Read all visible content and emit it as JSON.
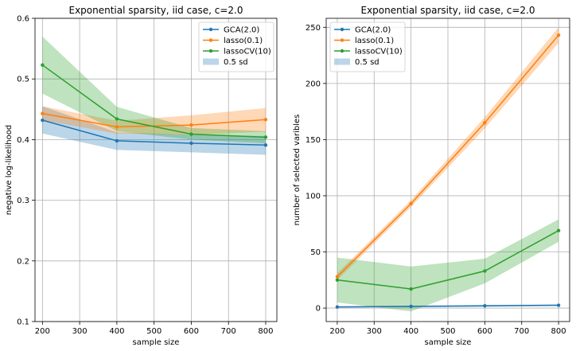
{
  "chart_data": [
    {
      "type": "line",
      "title": "Exponential sparsity, iid case, c=2.0",
      "xlabel": "sample size",
      "ylabel": "negative log-likelihood",
      "xlim": [
        180,
        830
      ],
      "ylim": [
        0.1,
        0.6
      ],
      "x_ticks": [
        200,
        300,
        400,
        500,
        600,
        700,
        800
      ],
      "y_ticks": [
        0.1,
        0.2,
        0.3,
        0.4,
        0.5,
        0.6
      ],
      "grid": true,
      "legend_position": "top-right",
      "x": [
        200,
        400,
        600,
        800
      ],
      "series": [
        {
          "name": "GCA(2.0)",
          "color": "#1f77b4",
          "values": [
            0.432,
            0.398,
            0.394,
            0.391
          ],
          "band_low": [
            0.41,
            0.383,
            0.379,
            0.375
          ],
          "band_high": [
            0.455,
            0.412,
            0.408,
            0.406
          ]
        },
        {
          "name": "lasso(0.1)",
          "color": "#ff7f0e",
          "values": [
            0.443,
            0.421,
            0.424,
            0.433
          ],
          "band_low": [
            0.432,
            0.41,
            0.408,
            0.413
          ],
          "band_high": [
            0.455,
            0.431,
            0.44,
            0.452
          ]
        },
        {
          "name": "lassoCV(10)",
          "color": "#2ca02c",
          "values": [
            0.523,
            0.434,
            0.409,
            0.404
          ],
          "band_low": [
            0.476,
            0.414,
            0.4,
            0.394
          ],
          "band_high": [
            0.57,
            0.454,
            0.419,
            0.414
          ]
        }
      ],
      "band_legend": "0.5 sd"
    },
    {
      "type": "line",
      "title": "Exponential sparsity, iid case, c=2.0",
      "xlabel": "sample size",
      "ylabel": "number of selected varibles",
      "xlim": [
        170,
        830
      ],
      "ylim": [
        -12,
        258
      ],
      "x_ticks": [
        200,
        300,
        400,
        500,
        600,
        700,
        800
      ],
      "y_ticks": [
        0,
        50,
        100,
        150,
        200,
        250
      ],
      "grid": true,
      "legend_position": "top-left",
      "x": [
        200,
        400,
        600,
        800
      ],
      "series": [
        {
          "name": "GCA(2.0)",
          "color": "#1f77b4",
          "values": [
            1,
            1.5,
            2,
            2.5
          ],
          "band_low": [
            0.5,
            0.8,
            1.2,
            1.8
          ],
          "band_high": [
            1.5,
            2.2,
            2.8,
            3.2
          ]
        },
        {
          "name": "lasso(0.1)",
          "color": "#ff7f0e",
          "values": [
            28,
            93,
            165,
            243
          ],
          "band_low": [
            25,
            90,
            160,
            236
          ],
          "band_high": [
            31,
            96,
            170,
            250
          ]
        },
        {
          "name": "lassoCV(10)",
          "color": "#2ca02c",
          "values": [
            25,
            17,
            33,
            69
          ],
          "band_low": [
            5,
            -3,
            22,
            59
          ],
          "band_high": [
            45,
            37,
            44,
            79
          ]
        }
      ],
      "band_legend": "0.5 sd"
    }
  ]
}
